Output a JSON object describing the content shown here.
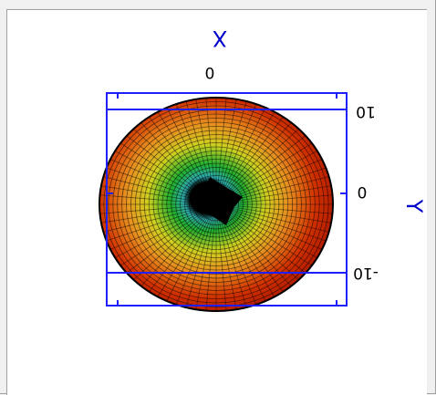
{
  "plot": {
    "x_axis_label": "X",
    "y_axis_label": "Y",
    "x_tick_labels": [
      "0"
    ],
    "y_tick_labels": [
      "10",
      "0",
      "-10"
    ],
    "axis_color": "#2020ff",
    "surface_colors": {
      "outer": "#cc2200",
      "middle": "#e8a020",
      "inner": "#20b020",
      "center": "#000000"
    },
    "orientation": "rotated-180"
  }
}
